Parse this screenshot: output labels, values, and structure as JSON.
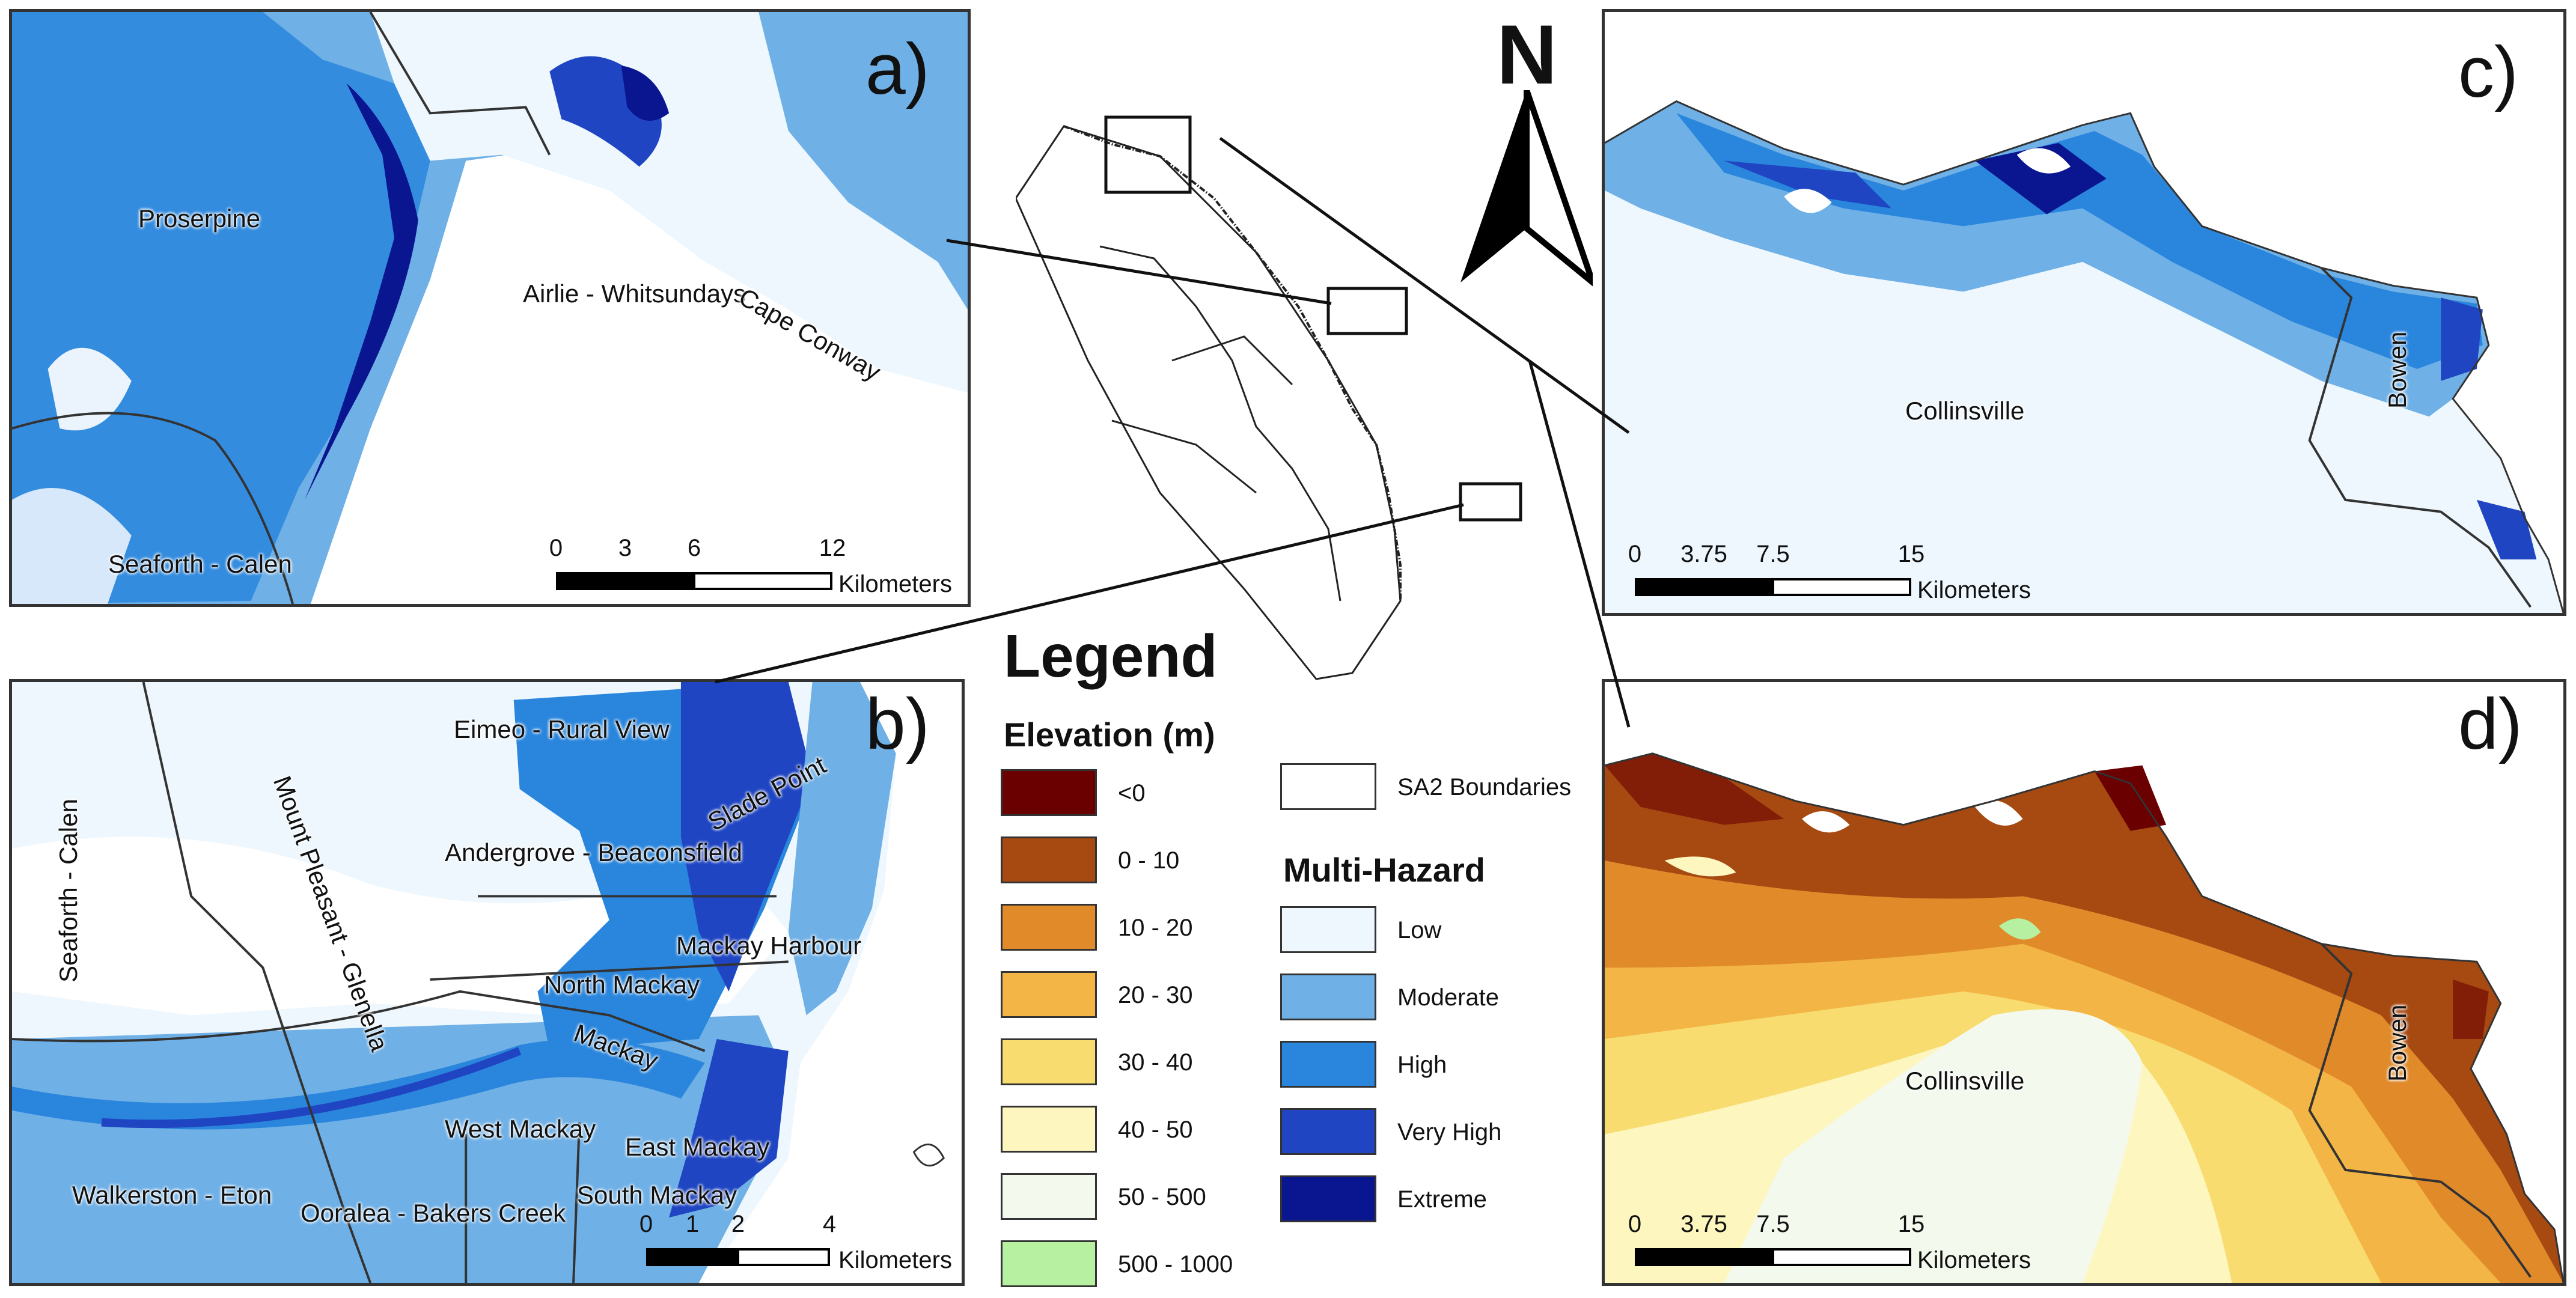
{
  "panels": {
    "a": {
      "label": "a)",
      "places": [
        "Proserpine",
        "Airlie - Whitsundays",
        "Cape Conway",
        "Seaforth - Calen"
      ],
      "scale": {
        "ticks": [
          "0",
          "3",
          "6",
          "12"
        ],
        "unit": "Kilometers"
      }
    },
    "b": {
      "label": "b)",
      "places": [
        "Eimeo - Rural View",
        "Slade Point",
        "Seaforth - Calen",
        "Mount Pleasant - Glenella",
        "Andergrove - Beaconsfield",
        "Mackay Harbour",
        "North Mackay",
        "Mackay",
        "West Mackay",
        "East Mackay",
        "Walkerston - Eton",
        "Ooralea - Bakers Creek",
        "South Mackay"
      ],
      "scale": {
        "ticks": [
          "0",
          "1",
          "2",
          "4"
        ],
        "unit": "Kilometers"
      }
    },
    "c": {
      "label": "c)",
      "places": [
        "Collinsville",
        "Bowen"
      ],
      "scale": {
        "ticks": [
          "0",
          "3.75",
          "7.5",
          "15"
        ],
        "unit": "Kilometers"
      }
    },
    "d": {
      "label": "d)",
      "places": [
        "Collinsville",
        "Bowen"
      ],
      "scale": {
        "ticks": [
          "0",
          "3.75",
          "7.5",
          "15"
        ],
        "unit": "Kilometers"
      }
    }
  },
  "north_arrow": {
    "letter": "N"
  },
  "legend": {
    "title": "Legend",
    "elevation": {
      "heading": "Elevation (m)",
      "classes": [
        {
          "label": "<0",
          "color": "#6b0000"
        },
        {
          "label": "0 - 10",
          "color": "#a64a12"
        },
        {
          "label": "10 - 20",
          "color": "#e08a2a"
        },
        {
          "label": "20 - 30",
          "color": "#f3b545"
        },
        {
          "label": "30 - 40",
          "color": "#f8dc70"
        },
        {
          "label": "40 - 50",
          "color": "#fdf6bf"
        },
        {
          "label": "50 - 500",
          "color": "#f4f9ee"
        },
        {
          "label": "500 - 1000",
          "color": "#b6f0a0"
        }
      ]
    },
    "boundaries": {
      "label": "SA2 Boundaries"
    },
    "hazard": {
      "heading": "Multi-Hazard",
      "classes": [
        {
          "label": "Low",
          "color": "#eef7fd"
        },
        {
          "label": "Moderate",
          "color": "#6fb0e6"
        },
        {
          "label": "High",
          "color": "#2a86dd"
        },
        {
          "label": "Very High",
          "color": "#1f45c2"
        },
        {
          "label": "Extreme",
          "color": "#0a1590"
        }
      ]
    }
  }
}
